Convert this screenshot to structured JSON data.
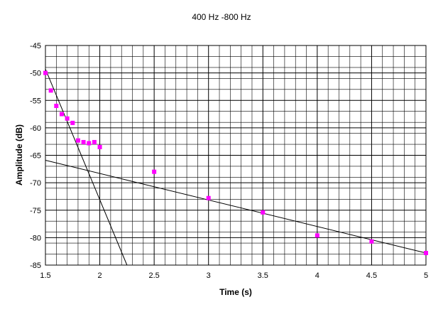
{
  "chart_data": {
    "type": "scatter",
    "title": "400 Hz -800 Hz",
    "xlabel": "Time (s)",
    "ylabel": "Amplitude (dB)",
    "xlim": [
      1.5,
      5
    ],
    "ylim": [
      -85,
      -45
    ],
    "x_ticks": [
      1.5,
      2,
      2.5,
      3,
      3.5,
      4,
      4.5,
      5
    ],
    "x_tick_labels": [
      "1.5",
      "2",
      "2.5",
      "3",
      "3.5",
      "4",
      "4.5",
      "5"
    ],
    "y_ticks": [
      -45,
      -50,
      -55,
      -60,
      -65,
      -70,
      -75,
      -80,
      -85
    ],
    "y_tick_labels": [
      "-45",
      "-50",
      "-55",
      "-60",
      "-65",
      "-70",
      "-75",
      "-80",
      "-85"
    ],
    "grid": true,
    "legend": "none",
    "series": [
      {
        "color": "#ff00ff",
        "marker": "square",
        "x": [
          1.5,
          1.55,
          1.6,
          1.65,
          1.7,
          1.75,
          1.8,
          1.85,
          1.9,
          1.95,
          2.0,
          2.5,
          3.0,
          3.5,
          4.0,
          4.5,
          5.0
        ],
        "y": [
          -50.0,
          -53.2,
          -56.0,
          -57.5,
          -58.3,
          -59.1,
          -62.3,
          -62.6,
          -62.8,
          -62.6,
          -63.5,
          -68.0,
          -72.8,
          -75.4,
          -79.6,
          -80.7,
          -82.8
        ]
      }
    ],
    "trendlines": [
      {
        "color": "#000000",
        "x": [
          1.5,
          2.25
        ],
        "y": [
          -49.3,
          -85.0
        ]
      },
      {
        "color": "#000000",
        "x": [
          1.5,
          5.0
        ],
        "y": [
          -65.9,
          -82.8
        ]
      }
    ]
  }
}
